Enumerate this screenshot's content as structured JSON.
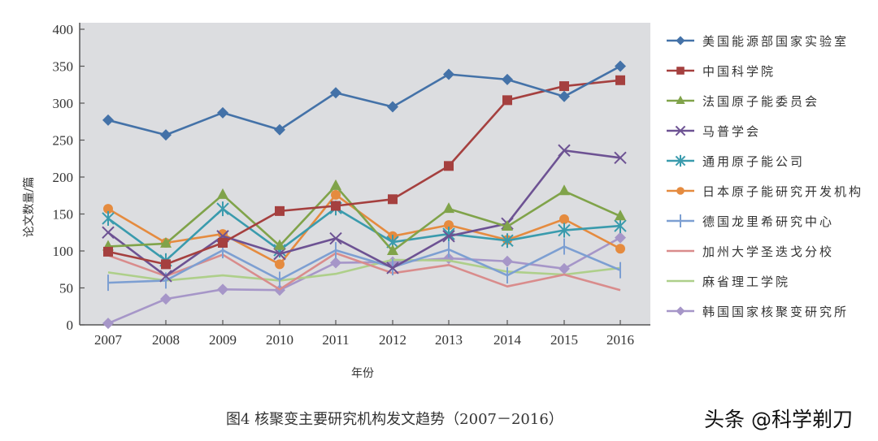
{
  "chart_data": {
    "type": "line",
    "title": "图4   核聚变主要研究机构发文趋势（2007－2016）",
    "xlabel": "年份",
    "ylabel": "论文数量/篇",
    "ylim": [
      0,
      400
    ],
    "yticks": [
      0,
      50,
      100,
      150,
      200,
      250,
      300,
      350,
      400
    ],
    "grid": false,
    "legend_position": "right",
    "x": [
      "2007",
      "2008",
      "2009",
      "2010",
      "2011",
      "2012",
      "2013",
      "2014",
      "2015",
      "2016"
    ],
    "series": [
      {
        "name": "美国能源部国家实验室",
        "color": "#4472a8",
        "marker": "diamond",
        "values": [
          277,
          257,
          287,
          264,
          314,
          295,
          339,
          332,
          309,
          350
        ]
      },
      {
        "name": "中国科学院",
        "color": "#a5403f",
        "marker": "square",
        "values": [
          99,
          82,
          111,
          154,
          161,
          170,
          215,
          304,
          323,
          331
        ]
      },
      {
        "name": "法国原子能委员会",
        "color": "#80a34a",
        "marker": "triangle",
        "values": [
          106,
          110,
          176,
          107,
          188,
          100,
          157,
          133,
          181,
          147
        ]
      },
      {
        "name": "马普学会",
        "color": "#6d5293",
        "marker": "x",
        "values": [
          125,
          66,
          120,
          96,
          117,
          77,
          120,
          137,
          236,
          226
        ]
      },
      {
        "name": "通用原子能公司",
        "color": "#3a9bad",
        "marker": "star",
        "values": [
          144,
          87,
          157,
          101,
          158,
          112,
          123,
          114,
          128,
          134
        ]
      },
      {
        "name": "日本原子能研究开发机构",
        "color": "#e58b3f",
        "marker": "circle",
        "values": [
          157,
          111,
          123,
          82,
          176,
          120,
          135,
          115,
          143,
          103
        ]
      },
      {
        "name": "德国龙里希研究中心",
        "color": "#7d9fd2",
        "marker": "plus",
        "values": [
          57,
          60,
          101,
          61,
          101,
          78,
          102,
          67,
          106,
          74
        ]
      },
      {
        "name": "加州大学圣迭戈分校",
        "color": "#d98c8c",
        "marker": "none",
        "values": [
          94,
          66,
          95,
          48,
          97,
          70,
          81,
          52,
          68,
          47
        ]
      },
      {
        "name": "麻省理工学院",
        "color": "#aecf8a",
        "marker": "none",
        "values": [
          71,
          60,
          67,
          60,
          69,
          88,
          87,
          72,
          68,
          77
        ]
      },
      {
        "name": "韩国国家核聚变研究所",
        "color": "#a696c8",
        "marker": "diamond",
        "values": [
          2,
          35,
          48,
          47,
          84,
          85,
          90,
          86,
          76,
          118
        ]
      }
    ]
  },
  "caption": "图4   核聚变主要研究机构发文趋势（2007－2016）",
  "watermark": "头条 @科学剃刀",
  "colors": {
    "plot_background": "#dcdde0",
    "axis": "#555555"
  }
}
